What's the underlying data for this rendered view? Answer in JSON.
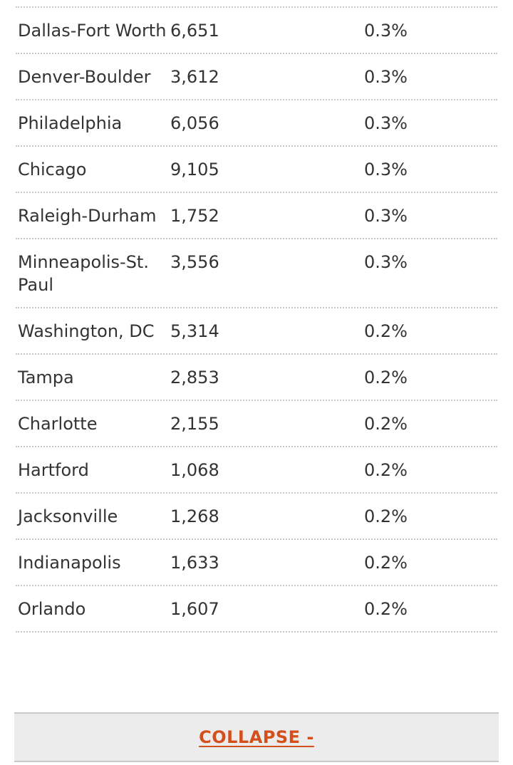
{
  "rows": [
    {
      "city": "Dallas-Fort Worth",
      "count": "6,651",
      "pct": "0.3%"
    },
    {
      "city": "Denver-Boulder",
      "count": "3,612",
      "pct": "0.3%"
    },
    {
      "city": "Philadelphia",
      "count": "6,056",
      "pct": "0.3%"
    },
    {
      "city": "Chicago",
      "count": "9,105",
      "pct": "0.3%"
    },
    {
      "city": "Raleigh-Durham",
      "count": "1,752",
      "pct": "0.3%"
    },
    {
      "city": "Minneapolis-St. Paul",
      "count": "3,556",
      "pct": "0.3%"
    },
    {
      "city": "Washington, DC",
      "count": "5,314",
      "pct": "0.2%"
    },
    {
      "city": "Tampa",
      "count": "2,853",
      "pct": "0.2%"
    },
    {
      "city": "Charlotte",
      "count": "2,155",
      "pct": "0.2%"
    },
    {
      "city": "Hartford",
      "count": "1,068",
      "pct": "0.2%"
    },
    {
      "city": "Jacksonville",
      "count": "1,268",
      "pct": "0.2%"
    },
    {
      "city": "Indianapolis",
      "count": "1,633",
      "pct": "0.2%"
    },
    {
      "city": "Orlando",
      "count": "1,607",
      "pct": "0.2%"
    }
  ],
  "collapse": {
    "label": "COLLAPSE -"
  },
  "colors": {
    "accent": "#d3501c",
    "bar_bg": "#ececec",
    "rule": "#c9c9c9"
  }
}
